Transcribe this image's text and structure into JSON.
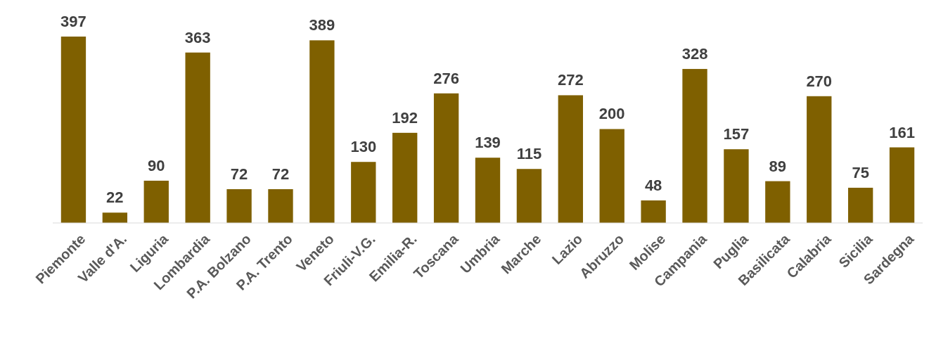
{
  "chart_data": {
    "type": "bar",
    "categories": [
      "Piemonte",
      "Valle d'A.",
      "Liguria",
      "Lombardia",
      "P.A. Bolzano",
      "P.A. Trento",
      "Veneto",
      "Friuli-V.G.",
      "Emilia-R.",
      "Toscana",
      "Umbria",
      "Marche",
      "Lazio",
      "Abruzzo",
      "Molise",
      "Campania",
      "Puglia",
      "Basilicata",
      "Calabria",
      "Sicilia",
      "Sardegna"
    ],
    "values": [
      397,
      22,
      90,
      363,
      72,
      72,
      389,
      130,
      192,
      276,
      139,
      115,
      272,
      200,
      48,
      328,
      157,
      89,
      270,
      75,
      161
    ],
    "color": "#7f6000",
    "data_labels": true
  }
}
